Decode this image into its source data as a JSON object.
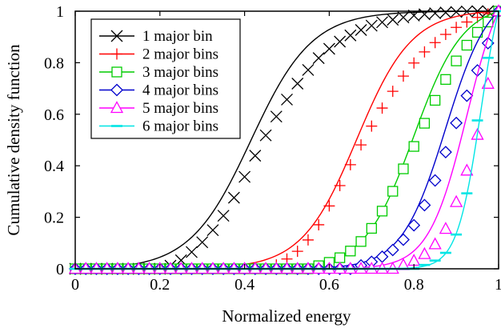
{
  "chart_data": {
    "type": "line",
    "title": "",
    "xlabel": "Normalized energy",
    "ylabel": "Cumulative density function",
    "xlim": [
      0,
      1
    ],
    "ylim": [
      0,
      1
    ],
    "x_ticks": [
      "0",
      "0.2",
      "0.4",
      "0.6",
      "0.8",
      "1"
    ],
    "y_ticks": [
      "0",
      "0.2",
      "0.4",
      "0.6",
      "0.8",
      "1"
    ],
    "grid": false,
    "legend_position": "top-left",
    "series": [
      {
        "name": "1 major bin",
        "color": "#000000",
        "marker": "x",
        "mu": 0.415,
        "s": 0.072,
        "x": [
          0.0,
          0.025,
          0.05,
          0.075,
          0.1,
          0.125,
          0.15,
          0.175,
          0.2,
          0.225,
          0.25,
          0.275,
          0.3,
          0.325,
          0.35,
          0.375,
          0.4,
          0.425,
          0.45,
          0.475,
          0.5,
          0.525,
          0.55,
          0.575,
          0.6,
          0.625,
          0.65,
          0.675,
          0.7,
          0.725,
          0.75,
          0.775,
          0.8,
          0.825,
          0.85,
          0.875,
          0.9,
          0.925,
          0.95,
          0.975,
          1.0
        ],
        "y": [
          0.0,
          0.0,
          0.0,
          0.0,
          0.0,
          0.0,
          0.0,
          0.0,
          0.0,
          0.012,
          0.033,
          0.065,
          0.103,
          0.15,
          0.206,
          0.276,
          0.357,
          0.439,
          0.518,
          0.591,
          0.657,
          0.719,
          0.772,
          0.818,
          0.854,
          0.882,
          0.906,
          0.927,
          0.944,
          0.957,
          0.967,
          0.976,
          0.983,
          0.988,
          0.992,
          0.995,
          0.997,
          0.999,
          1.0,
          1.0,
          1.0
        ]
      },
      {
        "name": "2 major bins",
        "color": "#ff0000",
        "marker": "+",
        "mu": 0.665,
        "s": 0.065,
        "x": [
          0.0,
          0.025,
          0.05,
          0.075,
          0.1,
          0.125,
          0.15,
          0.175,
          0.2,
          0.225,
          0.25,
          0.275,
          0.3,
          0.325,
          0.35,
          0.375,
          0.4,
          0.425,
          0.45,
          0.475,
          0.5,
          0.525,
          0.55,
          0.575,
          0.6,
          0.625,
          0.65,
          0.675,
          0.7,
          0.725,
          0.75,
          0.775,
          0.8,
          0.825,
          0.85,
          0.875,
          0.9,
          0.925,
          0.95,
          0.975,
          1.0
        ],
        "y": [
          0.0,
          0.0,
          0.0,
          0.0,
          0.0,
          0.0,
          0.0,
          0.0,
          0.0,
          0.0,
          0.0,
          0.0,
          0.0,
          0.0,
          0.0,
          0.0,
          0.0,
          0.0,
          0.0,
          0.015,
          0.038,
          0.068,
          0.112,
          0.171,
          0.244,
          0.323,
          0.404,
          0.481,
          0.554,
          0.624,
          0.689,
          0.748,
          0.799,
          0.842,
          0.878,
          0.91,
          0.937,
          0.958,
          0.976,
          0.99,
          1.0
        ]
      },
      {
        "name": "3 major bins",
        "color": "#00cc00",
        "marker": "square",
        "mu": 0.8,
        "s": 0.058,
        "x": [
          0.0,
          0.025,
          0.05,
          0.075,
          0.1,
          0.125,
          0.15,
          0.175,
          0.2,
          0.225,
          0.25,
          0.275,
          0.3,
          0.325,
          0.35,
          0.375,
          0.4,
          0.425,
          0.45,
          0.475,
          0.5,
          0.525,
          0.55,
          0.575,
          0.6,
          0.625,
          0.65,
          0.675,
          0.7,
          0.725,
          0.75,
          0.775,
          0.8,
          0.825,
          0.85,
          0.875,
          0.9,
          0.925,
          0.95,
          0.975,
          1.0
        ],
        "y": [
          0.0,
          0.0,
          0.0,
          0.0,
          0.0,
          0.0,
          0.0,
          0.0,
          0.0,
          0.0,
          0.0,
          0.0,
          0.0,
          0.0,
          0.0,
          0.0,
          0.0,
          0.0,
          0.0,
          0.0,
          0.0,
          0.0,
          0.0,
          0.012,
          0.025,
          0.043,
          0.069,
          0.106,
          0.157,
          0.224,
          0.301,
          0.388,
          0.475,
          0.565,
          0.654,
          0.735,
          0.807,
          0.868,
          0.918,
          0.958,
          1.0
        ]
      },
      {
        "name": "4 major bins",
        "color": "#0000cc",
        "marker": "diamond",
        "mu": 0.875,
        "s": 0.052,
        "x": [
          0.0,
          0.025,
          0.05,
          0.075,
          0.1,
          0.125,
          0.15,
          0.175,
          0.2,
          0.225,
          0.25,
          0.275,
          0.3,
          0.325,
          0.35,
          0.375,
          0.4,
          0.425,
          0.45,
          0.475,
          0.5,
          0.525,
          0.55,
          0.575,
          0.6,
          0.625,
          0.65,
          0.675,
          0.7,
          0.725,
          0.75,
          0.775,
          0.8,
          0.825,
          0.85,
          0.875,
          0.9,
          0.925,
          0.95,
          0.975,
          1.0
        ],
        "y": [
          0.0,
          0.0,
          0.0,
          0.0,
          0.0,
          0.0,
          0.0,
          0.0,
          0.0,
          0.0,
          0.0,
          0.0,
          0.0,
          0.0,
          0.0,
          0.0,
          0.0,
          0.0,
          0.0,
          0.0,
          0.0,
          0.0,
          0.0,
          0.0,
          0.0,
          0.0,
          0.0,
          0.013,
          0.027,
          0.047,
          0.073,
          0.113,
          0.169,
          0.247,
          0.343,
          0.453,
          0.566,
          0.672,
          0.77,
          0.876,
          1.0
        ]
      },
      {
        "name": "5 major bins",
        "color": "#ff00ff",
        "marker": "triangle",
        "mu": 0.925,
        "s": 0.045,
        "x": [
          0.0,
          0.025,
          0.05,
          0.075,
          0.1,
          0.125,
          0.15,
          0.175,
          0.2,
          0.225,
          0.25,
          0.275,
          0.3,
          0.325,
          0.35,
          0.375,
          0.4,
          0.425,
          0.45,
          0.475,
          0.5,
          0.525,
          0.55,
          0.575,
          0.6,
          0.625,
          0.65,
          0.675,
          0.7,
          0.725,
          0.75,
          0.775,
          0.8,
          0.825,
          0.85,
          0.875,
          0.9,
          0.925,
          0.95,
          0.975,
          1.0
        ],
        "y": [
          0.0,
          0.0,
          0.0,
          0.0,
          0.0,
          0.0,
          0.0,
          0.0,
          0.0,
          0.0,
          0.0,
          0.0,
          0.0,
          0.0,
          0.0,
          0.0,
          0.0,
          0.0,
          0.0,
          0.0,
          0.0,
          0.0,
          0.0,
          0.0,
          0.0,
          0.0,
          0.0,
          0.0,
          0.0,
          0.0,
          0.0,
          0.014,
          0.031,
          0.057,
          0.095,
          0.155,
          0.259,
          0.381,
          0.52,
          0.718,
          1.0
        ]
      },
      {
        "name": "6 major bins",
        "color": "#00e5e5",
        "marker": "dash",
        "mu": 0.958,
        "s": 0.028,
        "x": [
          0.0,
          0.025,
          0.05,
          0.075,
          0.1,
          0.125,
          0.15,
          0.175,
          0.2,
          0.225,
          0.25,
          0.275,
          0.3,
          0.325,
          0.35,
          0.375,
          0.4,
          0.425,
          0.45,
          0.475,
          0.5,
          0.525,
          0.55,
          0.575,
          0.6,
          0.625,
          0.65,
          0.675,
          0.7,
          0.725,
          0.75,
          0.775,
          0.8,
          0.825,
          0.85,
          0.875,
          0.9,
          0.925,
          0.95,
          0.975,
          1.0
        ],
        "y": [
          0.0,
          0.0,
          0.0,
          0.0,
          0.0,
          0.0,
          0.0,
          0.0,
          0.0,
          0.0,
          0.0,
          0.0,
          0.0,
          0.0,
          0.0,
          0.0,
          0.0,
          0.0,
          0.0,
          0.0,
          0.0,
          0.0,
          0.0,
          0.0,
          0.0,
          0.0,
          0.0,
          0.0,
          0.0,
          0.0,
          0.0,
          0.0,
          0.0,
          0.015,
          0.032,
          0.062,
          0.133,
          0.293,
          0.576,
          0.819,
          1.0
        ]
      }
    ]
  }
}
